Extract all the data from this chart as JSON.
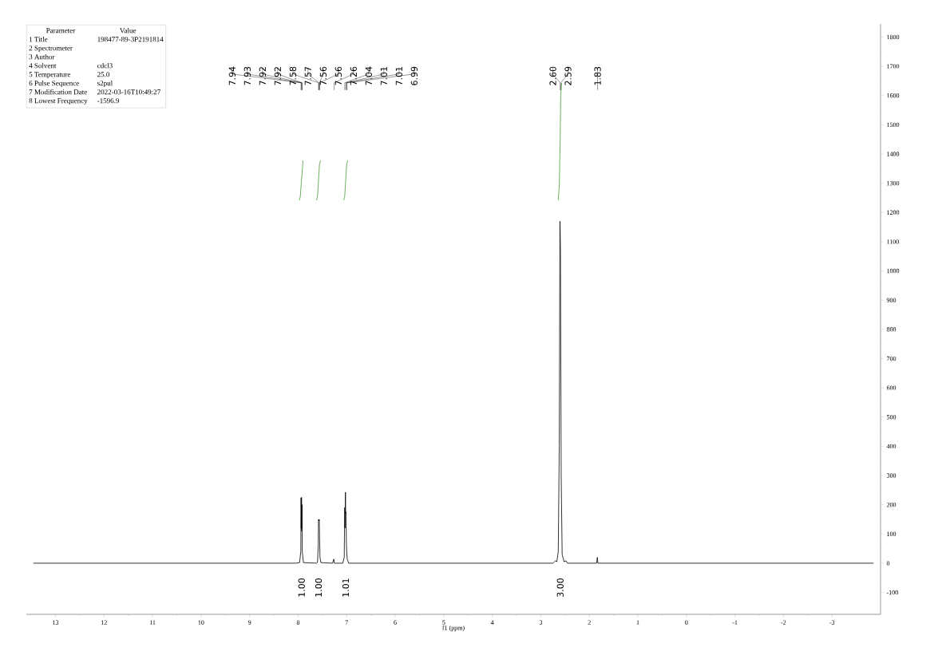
{
  "chart_data": [
    {
      "type": "line",
      "xlabel": "f1 (ppm)",
      "xlim": [
        13.6,
        -4.0
      ],
      "ylim": [
        -175,
        1845
      ],
      "xticks": [
        13,
        12,
        11,
        10,
        9,
        8,
        7,
        6,
        5,
        4,
        3,
        2,
        1,
        0,
        -1,
        -2,
        -3
      ],
      "yticks": [
        -100,
        0,
        100,
        200,
        300,
        400,
        500,
        600,
        700,
        800,
        900,
        1000,
        1100,
        1200,
        1300,
        1400,
        1500,
        1600,
        1700,
        1800
      ],
      "grid": false,
      "marker": "none",
      "line_style": "solid",
      "series": [
        {
          "color": "#000000",
          "x": [
            13.45,
            8.05,
            7.97,
            7.945,
            7.94,
            7.935,
            7.93,
            7.925,
            7.92,
            7.915,
            7.89,
            7.62,
            7.6,
            7.585,
            7.58,
            7.57,
            7.565,
            7.56,
            7.55,
            7.53,
            7.29,
            7.265,
            7.255,
            7.08,
            7.05,
            7.04,
            7.035,
            7.025,
            7.02,
            7.015,
            7.005,
            6.99,
            6.96,
            2.75,
            2.7,
            2.67,
            2.64,
            2.62,
            2.605,
            2.595,
            2.58,
            2.56,
            2.52,
            2.48,
            2.45,
            1.85,
            1.835,
            1.825,
            -3.85
          ],
          "values": [
            0,
            0,
            2,
            40,
            224,
            120,
            225,
            110,
            200,
            40,
            2,
            0,
            5,
            60,
            150,
            145,
            150,
            100,
            20,
            2,
            0,
            14,
            0,
            0,
            20,
            190,
            120,
            243,
            170,
            175,
            60,
            15,
            0,
            0,
            8,
            5,
            40,
            400,
            1170,
            1070,
            300,
            30,
            5,
            8,
            0,
            0,
            20,
            0,
            0
          ]
        },
        {
          "color": "#4a9a3a",
          "x": [
            7.97,
            7.955,
            7.93,
            7.905,
            7.9
          ],
          "values": [
            1243,
            1255,
            1310,
            1365,
            1377
          ]
        },
        {
          "color": "#4a9a3a",
          "x": [
            7.62,
            7.6,
            7.58,
            7.56,
            7.54
          ],
          "values": [
            1243,
            1255,
            1310,
            1365,
            1377
          ]
        },
        {
          "color": "#4a9a3a",
          "x": [
            7.06,
            7.04,
            7.02,
            7.0,
            6.98
          ],
          "values": [
            1243,
            1255,
            1310,
            1365,
            1377
          ]
        },
        {
          "color": "#4a9a3a",
          "x": [
            2.64,
            2.62,
            2.6,
            2.59,
            2.57
          ],
          "values": [
            1243,
            1290,
            1450,
            1600,
            1642
          ]
        }
      ],
      "annotations": [
        {
          "text": "7.94",
          "x": 7.94
        },
        {
          "text": "7.93",
          "x": 7.93
        },
        {
          "text": "7.92",
          "x": 7.92
        },
        {
          "text": "7.92",
          "x": 7.92
        },
        {
          "text": "7.58",
          "x": 7.58
        },
        {
          "text": "7.57",
          "x": 7.57
        },
        {
          "text": "7.56",
          "x": 7.56
        },
        {
          "text": "7.56",
          "x": 7.56
        },
        {
          "text": "7.26",
          "x": 7.26
        },
        {
          "text": "7.04",
          "x": 7.04
        },
        {
          "text": "7.01",
          "x": 7.01
        },
        {
          "text": "7.01",
          "x": 7.01
        },
        {
          "text": "6.99",
          "x": 6.99
        },
        {
          "text": "2.60",
          "x": 2.6
        },
        {
          "text": "2.59",
          "x": 2.59
        },
        {
          "text": "1.83",
          "x": 1.83
        },
        "1.00",
        "1.00",
        "1.01",
        "3.00"
      ]
    },
    {
      "type": "other",
      "categories": [
        "Parameter",
        "1 Title",
        "2 Spectrometer",
        "3 Author",
        "4 Solvent",
        "5 Temperature",
        "6 Pulse Sequence",
        "7 Modification Date",
        "8 Lowest Frequency"
      ],
      "cell_labels": [
        "Value",
        "198477-89-3P2191814",
        null,
        null,
        "cdcl3",
        "25.0",
        "s2pul",
        "2022-03-16T10:49:27",
        "-1596.9"
      ]
    }
  ]
}
